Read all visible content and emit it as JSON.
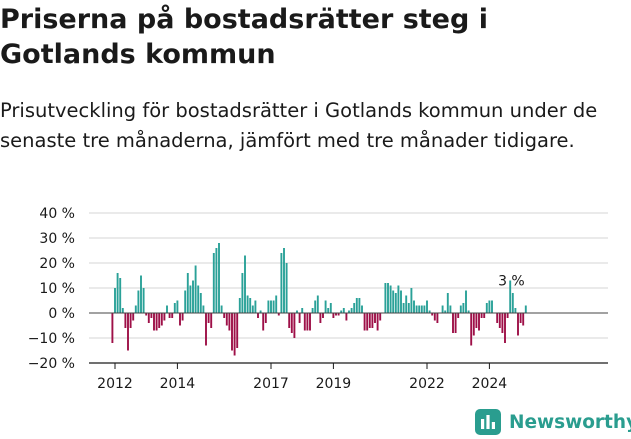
{
  "title": "Priserna på bostadsrätter steg i Gotlands kommun",
  "subtitle": "Prisutveckling för bostadsrätter i Gotlands kommun under de senaste tre månaderna, jämfört med tre månader tidigare.",
  "brand": {
    "name": "Newsworthy",
    "icon": "newsworthy-logo-icon",
    "color": "#2a9d8f"
  },
  "chart_data": {
    "type": "bar",
    "title": "",
    "xlabel": "",
    "ylabel": "",
    "ylim": [
      -20,
      40
    ],
    "yticks": [
      -20,
      -10,
      0,
      10,
      20,
      30,
      40
    ],
    "ytick_labels": [
      "−20 %",
      "−10 %",
      "0 %",
      "10 %",
      "20 %",
      "30 %",
      "40 %"
    ],
    "xtick_labels": [
      "2012",
      "2014",
      "2017",
      "2019",
      "2022",
      "2024"
    ],
    "xtick_positions": [
      "2012-01",
      "2014-01",
      "2017-01",
      "2019-01",
      "2022-01",
      "2024-01"
    ],
    "grid": "horizontal",
    "legend": "none",
    "colors": {
      "positive": "#2aa198",
      "negative": "#9e1048",
      "axis": "#1a1a1a",
      "grid": "#d6d6d6"
    },
    "annotation": {
      "text": "3 %",
      "x": "2024-11",
      "y": 3
    },
    "start": "2011-12",
    "values": [
      -12,
      10,
      16,
      14,
      2,
      -6,
      -15,
      -6,
      -3,
      3,
      9,
      15,
      10,
      -1,
      -4,
      -2,
      -7,
      -7,
      -6,
      -5,
      -3,
      3,
      -2,
      -2,
      4,
      5,
      -5,
      -3,
      9,
      16,
      11,
      13,
      19,
      11,
      8,
      3,
      -13,
      -4,
      -6,
      24,
      26,
      28,
      3,
      -2,
      -5,
      -7,
      -15,
      -17,
      -14,
      6,
      16,
      23,
      7,
      6,
      3,
      5,
      -2,
      1,
      -7,
      -4,
      5,
      5,
      5,
      7,
      -1,
      24,
      26,
      20,
      -6,
      -8,
      -10,
      1,
      -4,
      2,
      -7,
      -7,
      -7,
      2,
      5,
      7,
      -4,
      -2,
      5,
      2,
      4,
      -2,
      -1,
      -1,
      1,
      2,
      -3,
      1,
      2,
      4,
      6,
      6,
      3,
      -7,
      -7,
      -6,
      -6,
      -4,
      -7,
      -3,
      0,
      12,
      12,
      11,
      9,
      8,
      11,
      9,
      4,
      7,
      4,
      10,
      5,
      3,
      3,
      3,
      3,
      5,
      1,
      -1,
      -3,
      -4,
      0,
      3,
      1,
      8,
      3,
      -8,
      -8,
      -2,
      3,
      4,
      9,
      1,
      -13,
      -9,
      -6,
      -7,
      -2,
      -2,
      4,
      5,
      5,
      0,
      -4,
      -6,
      -8,
      -12,
      -2,
      13,
      8,
      2,
      -9,
      -4,
      -5,
      3
    ]
  }
}
